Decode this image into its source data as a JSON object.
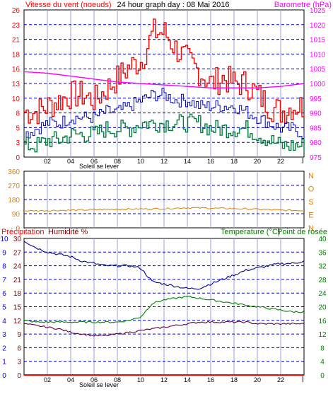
{
  "chart_data": [
    {
      "id": "wind",
      "type": "line",
      "title": "24 hour graph day : 08 Mai 2016",
      "left_label": "Vitesse du vent (noeuds)",
      "right_label": "Barometre (hPa)",
      "x_ticks": [
        "02",
        "04",
        "06",
        "08",
        "10",
        "12",
        "14",
        "16",
        "18",
        "20",
        "22"
      ],
      "annotation": "Soleil se lever",
      "ylim_left": [
        0,
        26
      ],
      "yticks_left": [
        "0",
        "3",
        "5",
        "8",
        "10",
        "13",
        "16",
        "18",
        "21",
        "23",
        "26"
      ],
      "ylim_right": [
        975,
        1025
      ],
      "yticks_right": [
        "975",
        "980",
        "985",
        "990",
        "995",
        "1000",
        "1005",
        "1010",
        "1015",
        "1020",
        "1025"
      ],
      "colors": {
        "gust": "#ff0000",
        "avg": "#0000c8",
        "min": "#008040",
        "baro": "#ff00ff",
        "left_axis": "#ff0000",
        "right_axis": "#ff00ff"
      },
      "series": [
        {
          "key": "gust",
          "x": [
            0,
            1,
            2,
            3,
            4,
            5,
            6,
            7,
            8,
            9,
            10,
            11,
            12,
            13,
            14,
            15,
            16,
            17,
            18,
            19,
            20,
            21,
            22,
            23,
            24
          ],
          "values": [
            8,
            8,
            9,
            10,
            11,
            11,
            10,
            12,
            14,
            16,
            17,
            22,
            22,
            19,
            17,
            15,
            13,
            14,
            13,
            13,
            11,
            9,
            8,
            9,
            9
          ]
        },
        {
          "key": "avg",
          "x": [
            0,
            1,
            2,
            3,
            4,
            5,
            6,
            7,
            8,
            9,
            10,
            11,
            12,
            13,
            14,
            15,
            16,
            17,
            18,
            19,
            20,
            21,
            22,
            23,
            24
          ],
          "values": [
            4,
            5,
            6,
            6,
            7,
            7,
            7,
            8,
            8,
            9,
            10,
            11,
            11,
            10,
            10,
            9,
            9,
            9,
            9,
            8,
            7,
            6,
            5,
            5,
            4
          ]
        },
        {
          "key": "min",
          "x": [
            0,
            1,
            2,
            3,
            4,
            5,
            6,
            7,
            8,
            9,
            10,
            11,
            12,
            13,
            14,
            15,
            16,
            17,
            18,
            19,
            20,
            21,
            22,
            23,
            24
          ],
          "values": [
            2,
            2,
            3,
            3,
            4,
            4,
            4,
            5,
            5,
            5,
            6,
            6,
            6,
            6,
            6,
            6,
            5,
            5,
            5,
            5,
            4,
            3,
            2,
            2,
            2
          ]
        },
        {
          "key": "baro",
          "axis": "right",
          "x": [
            0,
            2,
            4,
            6,
            8,
            10,
            12,
            14,
            16,
            18,
            20,
            22,
            24
          ],
          "values": [
            1004,
            1003.5,
            1002.5,
            1001.5,
            1000.5,
            1000,
            999.5,
            999,
            998.5,
            998.5,
            998.5,
            999,
            1000
          ]
        }
      ]
    },
    {
      "id": "direction",
      "type": "line",
      "right_label_letters": [
        "N",
        "O",
        "S",
        "E",
        "N"
      ],
      "ylim": [
        0,
        360
      ],
      "yticks": [
        "0",
        "90",
        "180",
        "270",
        "360"
      ],
      "colors": {
        "dir": "#e08000",
        "axis": "#e08000"
      },
      "series": [
        {
          "key": "dir",
          "x": [
            0,
            2,
            4,
            6,
            8,
            10,
            12,
            14,
            16,
            18,
            20,
            22,
            24
          ],
          "values": [
            108,
            110,
            112,
            115,
            118,
            120,
            122,
            128,
            125,
            122,
            118,
            112,
            110
          ]
        }
      ]
    },
    {
      "id": "climate",
      "type": "line",
      "label_precip": "Précipitation",
      "label_humidity": "Humidité %",
      "label_temp": "Temperature (°C)",
      "label_dew": "Point de rosée",
      "x_ticks": [
        "02",
        "04",
        "06",
        "08",
        "10",
        "12",
        "14",
        "16",
        "18",
        "20",
        "22"
      ],
      "annotation": "Soleil se lever",
      "ylim_precip": [
        0,
        10
      ],
      "yticks_precip": [
        "0",
        "1",
        "2",
        "3",
        "4",
        "5",
        "6",
        "7",
        "8",
        "9",
        "10"
      ],
      "ylim_humidity": [
        0,
        30
      ],
      "yticks_humidity": [
        "0",
        "3",
        "6",
        "9",
        "12",
        "15",
        "18",
        "21",
        "24",
        "27",
        "30"
      ],
      "ylim_temp": [
        0,
        40
      ],
      "yticks_temp": [
        "0",
        "4",
        "8",
        "12",
        "16",
        "20",
        "24",
        "28",
        "32",
        "36",
        "40"
      ],
      "colors": {
        "humidity": "#000090",
        "temp": "#008000",
        "dew": "#600040",
        "precip": "#ff0000",
        "precip_axis": "#0000ff",
        "hum_axis": "#800000",
        "temp_axis": "#008000"
      },
      "series": [
        {
          "key": "humidity",
          "axis": "humidity",
          "x": [
            0,
            1,
            2,
            3,
            4,
            5,
            6,
            7,
            8,
            9,
            10,
            11,
            12,
            13,
            14,
            15,
            16,
            17,
            18,
            19,
            20,
            21,
            22,
            23,
            24
          ],
          "values": [
            29.5,
            28,
            27,
            26.5,
            26,
            25,
            24.5,
            24,
            24,
            24,
            23.5,
            20.5,
            20,
            19.5,
            19,
            19,
            20,
            21,
            22,
            23,
            23.5,
            24,
            24.5,
            24.5,
            25
          ]
        },
        {
          "key": "temp",
          "axis": "temp",
          "x": [
            0,
            1,
            2,
            3,
            4,
            5,
            6,
            7,
            8,
            9,
            10,
            11,
            12,
            13,
            14,
            15,
            16,
            17,
            18,
            19,
            20,
            21,
            22,
            23,
            24
          ],
          "values": [
            16,
            15.5,
            15.5,
            15.5,
            15.5,
            15.5,
            15.5,
            15.5,
            15.5,
            16,
            17,
            21,
            22,
            22.5,
            23,
            22.5,
            22,
            21.5,
            21,
            20.5,
            20,
            19.5,
            19,
            18.5,
            18.5
          ]
        },
        {
          "key": "dew",
          "axis": "temp",
          "x": [
            0,
            1,
            2,
            3,
            4,
            5,
            6,
            7,
            8,
            9,
            10,
            11,
            12,
            13,
            14,
            15,
            16,
            17,
            18,
            19,
            20,
            21,
            22,
            23,
            24
          ],
          "values": [
            15,
            14.5,
            14,
            13.5,
            12.5,
            12,
            11.5,
            11.5,
            12,
            12.5,
            13,
            13.5,
            14,
            14.5,
            15,
            15.5,
            15.5,
            15.5,
            15.5,
            15.5,
            15,
            15,
            15,
            15,
            15
          ]
        },
        {
          "key": "precip",
          "axis": "precip",
          "x": [
            0,
            24
          ],
          "values": [
            0,
            0
          ]
        }
      ]
    }
  ]
}
